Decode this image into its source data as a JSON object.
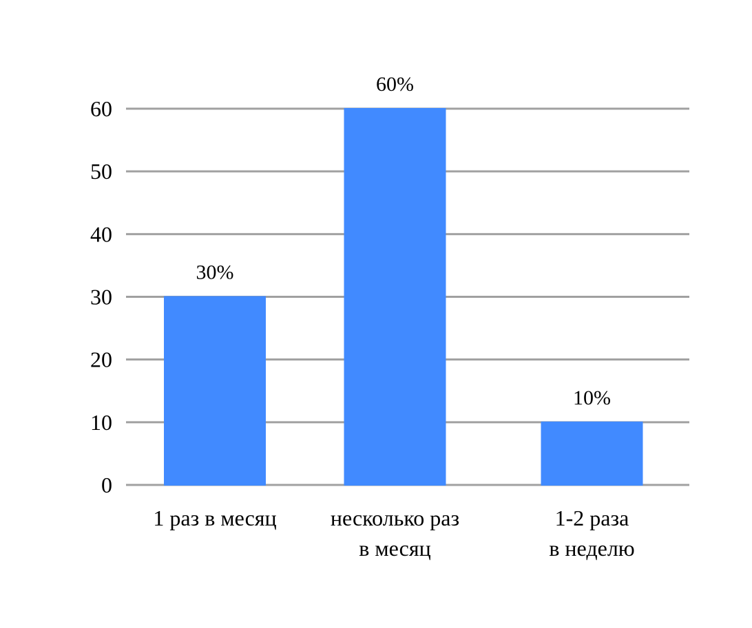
{
  "chart_data": {
    "type": "bar",
    "categories": [
      [
        "1 раз в месяц"
      ],
      [
        "несколько раз",
        "в месяц"
      ],
      [
        "1-2 раза",
        "в неделю"
      ]
    ],
    "values": [
      30,
      60,
      10
    ],
    "data_labels": [
      "30%",
      "60%",
      "10%"
    ],
    "yticks": [
      "0",
      "10",
      "20",
      "30",
      "40",
      "50",
      "60"
    ],
    "ylim": [
      0,
      60
    ],
    "grid": true,
    "bar_color": "#418AFF",
    "grid_color": "#a0a0a0"
  }
}
